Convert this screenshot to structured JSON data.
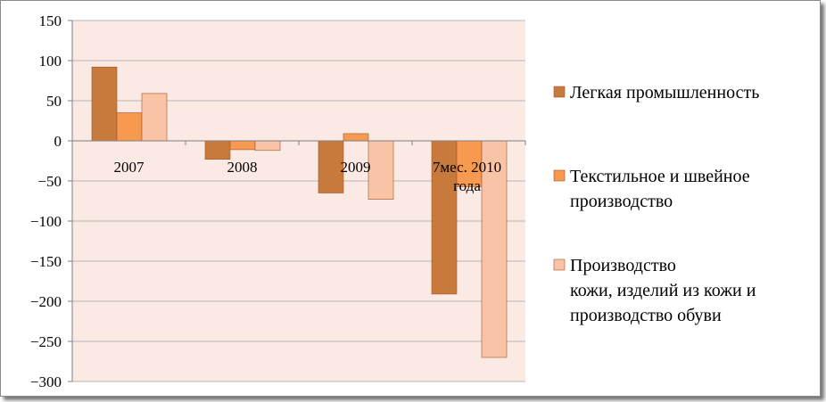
{
  "chart_data": {
    "type": "bar",
    "categories": [
      "2007",
      "2008",
      "2009",
      "7мес. 2010 года"
    ],
    "category_label_lines": [
      [
        "2007"
      ],
      [
        "2008"
      ],
      [
        "2009"
      ],
      [
        "7мес. 2010",
        "года"
      ]
    ],
    "series": [
      {
        "name": "Легкая промышленность",
        "legend_lines": [
          "Легкая промышленность"
        ],
        "color": "#c87a3c",
        "values": [
          92,
          -23,
          -65,
          -191
        ]
      },
      {
        "name": "Текстильное и швейное производство",
        "legend_lines": [
          "Текстильное и швейное",
          "производство"
        ],
        "color": "#f79a4f",
        "values": [
          35,
          -11,
          9,
          -57
        ]
      },
      {
        "name": "Производство кожи, изделий из кожи и производство обуви",
        "legend_lines": [
          "Производство",
          "кожи, изделий из кожи и",
          "производство обуви"
        ],
        "color": "#f9c4a6",
        "values": [
          59,
          -12,
          -73,
          -270
        ]
      }
    ],
    "ylim": [
      -300,
      150
    ],
    "yticks": [
      150,
      100,
      50,
      0,
      -50,
      -100,
      -150,
      -200,
      -250,
      -300
    ],
    "grid": true,
    "legend": "right",
    "plot_background": "#fbeae4",
    "grid_color": "#b7b7b7"
  }
}
